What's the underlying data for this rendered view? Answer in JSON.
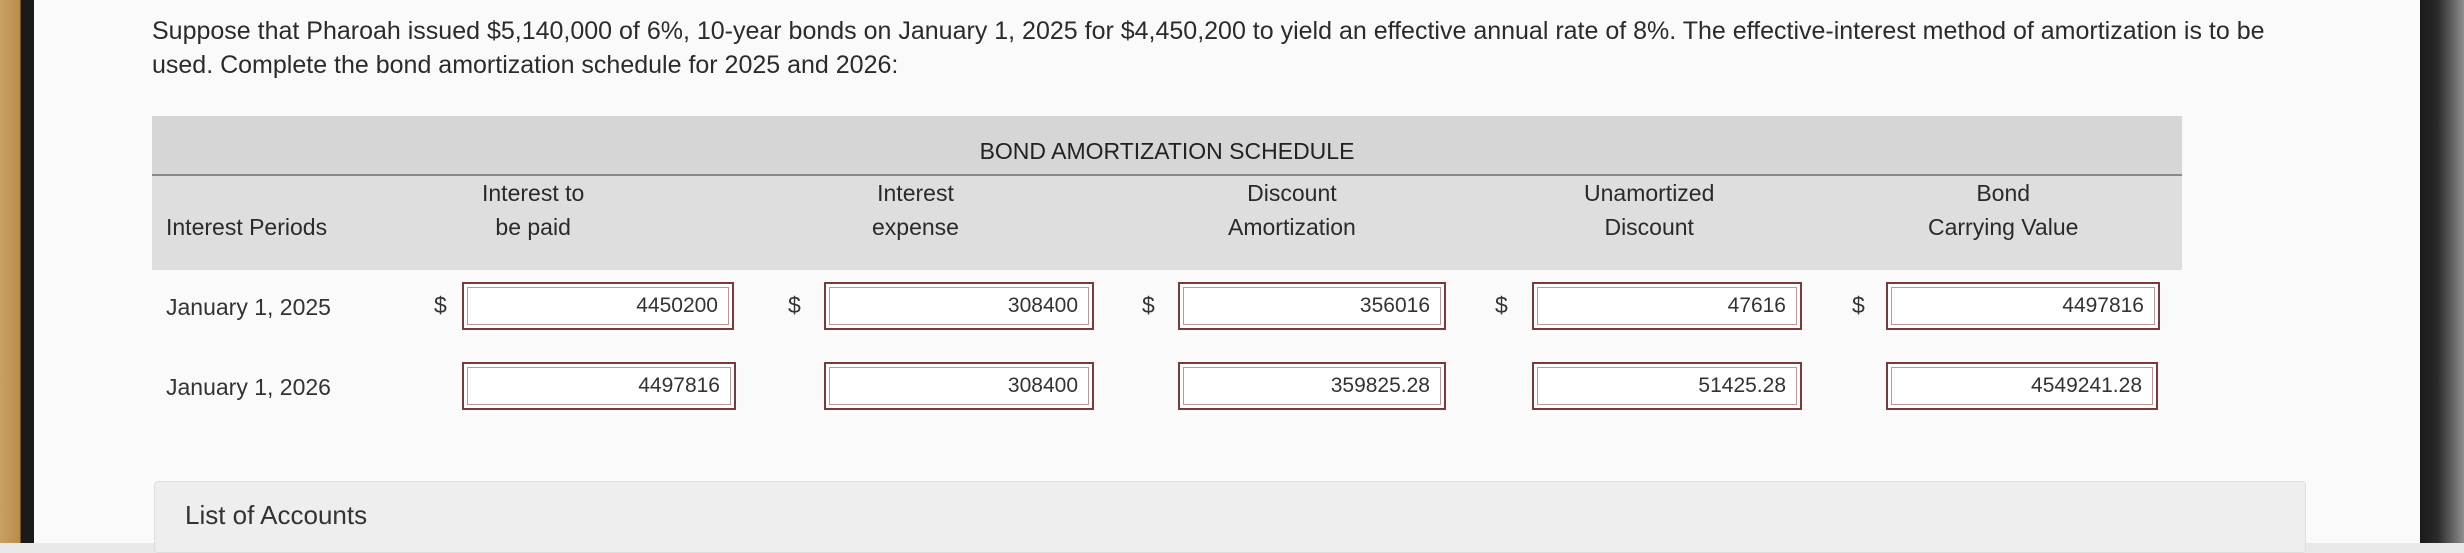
{
  "question": {
    "text": "Suppose that Pharoah issued $5,140,000 of 6%, 10-year bonds on January 1, 2025 for $4,450,200 to yield an effective annual rate of 8%. The effective-interest method of amortization is to be used. Complete the bond amortization schedule for 2025 and 2026:"
  },
  "schedule": {
    "title": "BOND AMORTIZATION SCHEDULE",
    "headers": {
      "periods": "Interest Periods",
      "interest_paid": [
        "Interest to",
        "be paid"
      ],
      "interest_expense": [
        "Interest",
        "expense"
      ],
      "discount_amortization": [
        "Discount",
        "Amortization"
      ],
      "unamortized_discount": [
        "Unamortized",
        "Discount"
      ],
      "carrying_value": [
        "Bond",
        "Carrying Value"
      ]
    },
    "currency_symbol": "$",
    "rows": [
      {
        "period": "January 1, 2025",
        "interest_paid": "4450200",
        "interest_expense": "308400",
        "discount_amortization": "356016",
        "unamortized_discount": "47616",
        "carrying_value": "4497816"
      },
      {
        "period": "January 1, 2026",
        "interest_paid": "4497816",
        "interest_expense": "308400",
        "discount_amortization": "359825.28",
        "unamortized_discount": "51425.28",
        "carrying_value": "4549241.28"
      }
    ]
  },
  "accounts_panel": {
    "label": "List of Accounts"
  }
}
